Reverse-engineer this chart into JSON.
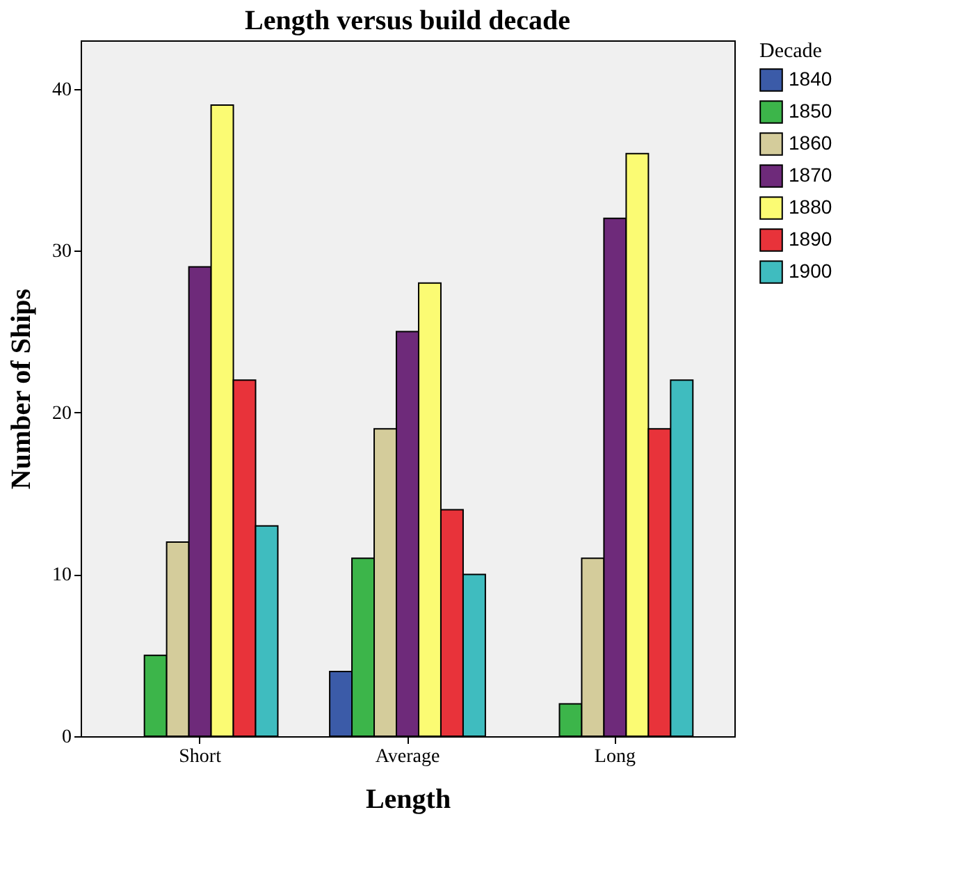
{
  "chart_data": {
    "type": "bar",
    "title": "Length versus build decade",
    "xlabel": "Length",
    "ylabel": "Number of Ships",
    "legend_title": "Decade",
    "categories": [
      "Short",
      "Average",
      "Long"
    ],
    "series": [
      {
        "name": "1840",
        "color": "#3b5ba8",
        "values": [
          null,
          4,
          null
        ]
      },
      {
        "name": "1850",
        "color": "#3cb54a",
        "values": [
          5,
          11,
          2
        ]
      },
      {
        "name": "1860",
        "color": "#d4cc9b",
        "values": [
          12,
          19,
          11
        ]
      },
      {
        "name": "1870",
        "color": "#6e2a7a",
        "values": [
          29,
          25,
          32
        ]
      },
      {
        "name": "1880",
        "color": "#fbfb73",
        "values": [
          39,
          28,
          36
        ]
      },
      {
        "name": "1890",
        "color": "#e8333a",
        "values": [
          22,
          14,
          19
        ]
      },
      {
        "name": "1900",
        "color": "#3fbcbf",
        "values": [
          13,
          10,
          22
        ]
      }
    ],
    "ylim": [
      0,
      43
    ],
    "yticks": [
      0,
      10,
      20,
      30,
      40
    ],
    "grid": false,
    "legend": "right"
  }
}
